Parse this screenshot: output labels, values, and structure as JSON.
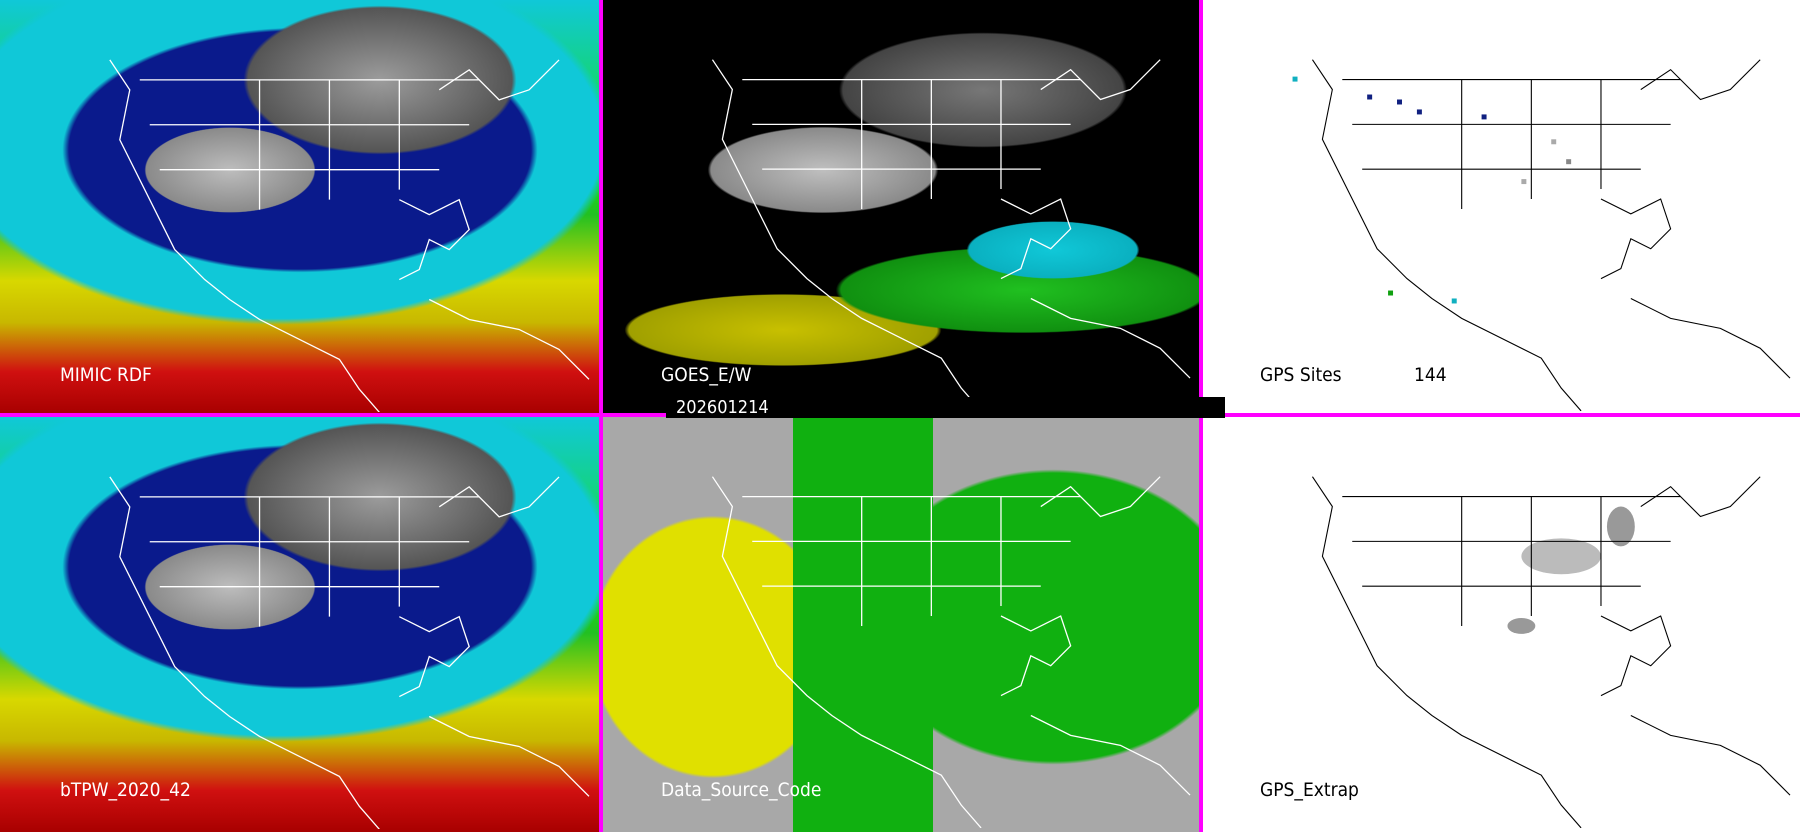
{
  "panels": [
    {
      "label": "MIMIC RDF"
    },
    {
      "label": "GOES_E/W"
    },
    {
      "label": "GPS Sites",
      "count": "144"
    },
    {
      "label": "bTPW_2020_42"
    },
    {
      "label": "Data_Source_Code"
    },
    {
      "label": "GPS_Extrap"
    }
  ],
  "date_bar": "202601214",
  "colors": {
    "divider": "#ff00ff",
    "map_lines_dark_panels": "#ffffff",
    "map_lines_light_panels": "#000000"
  }
}
